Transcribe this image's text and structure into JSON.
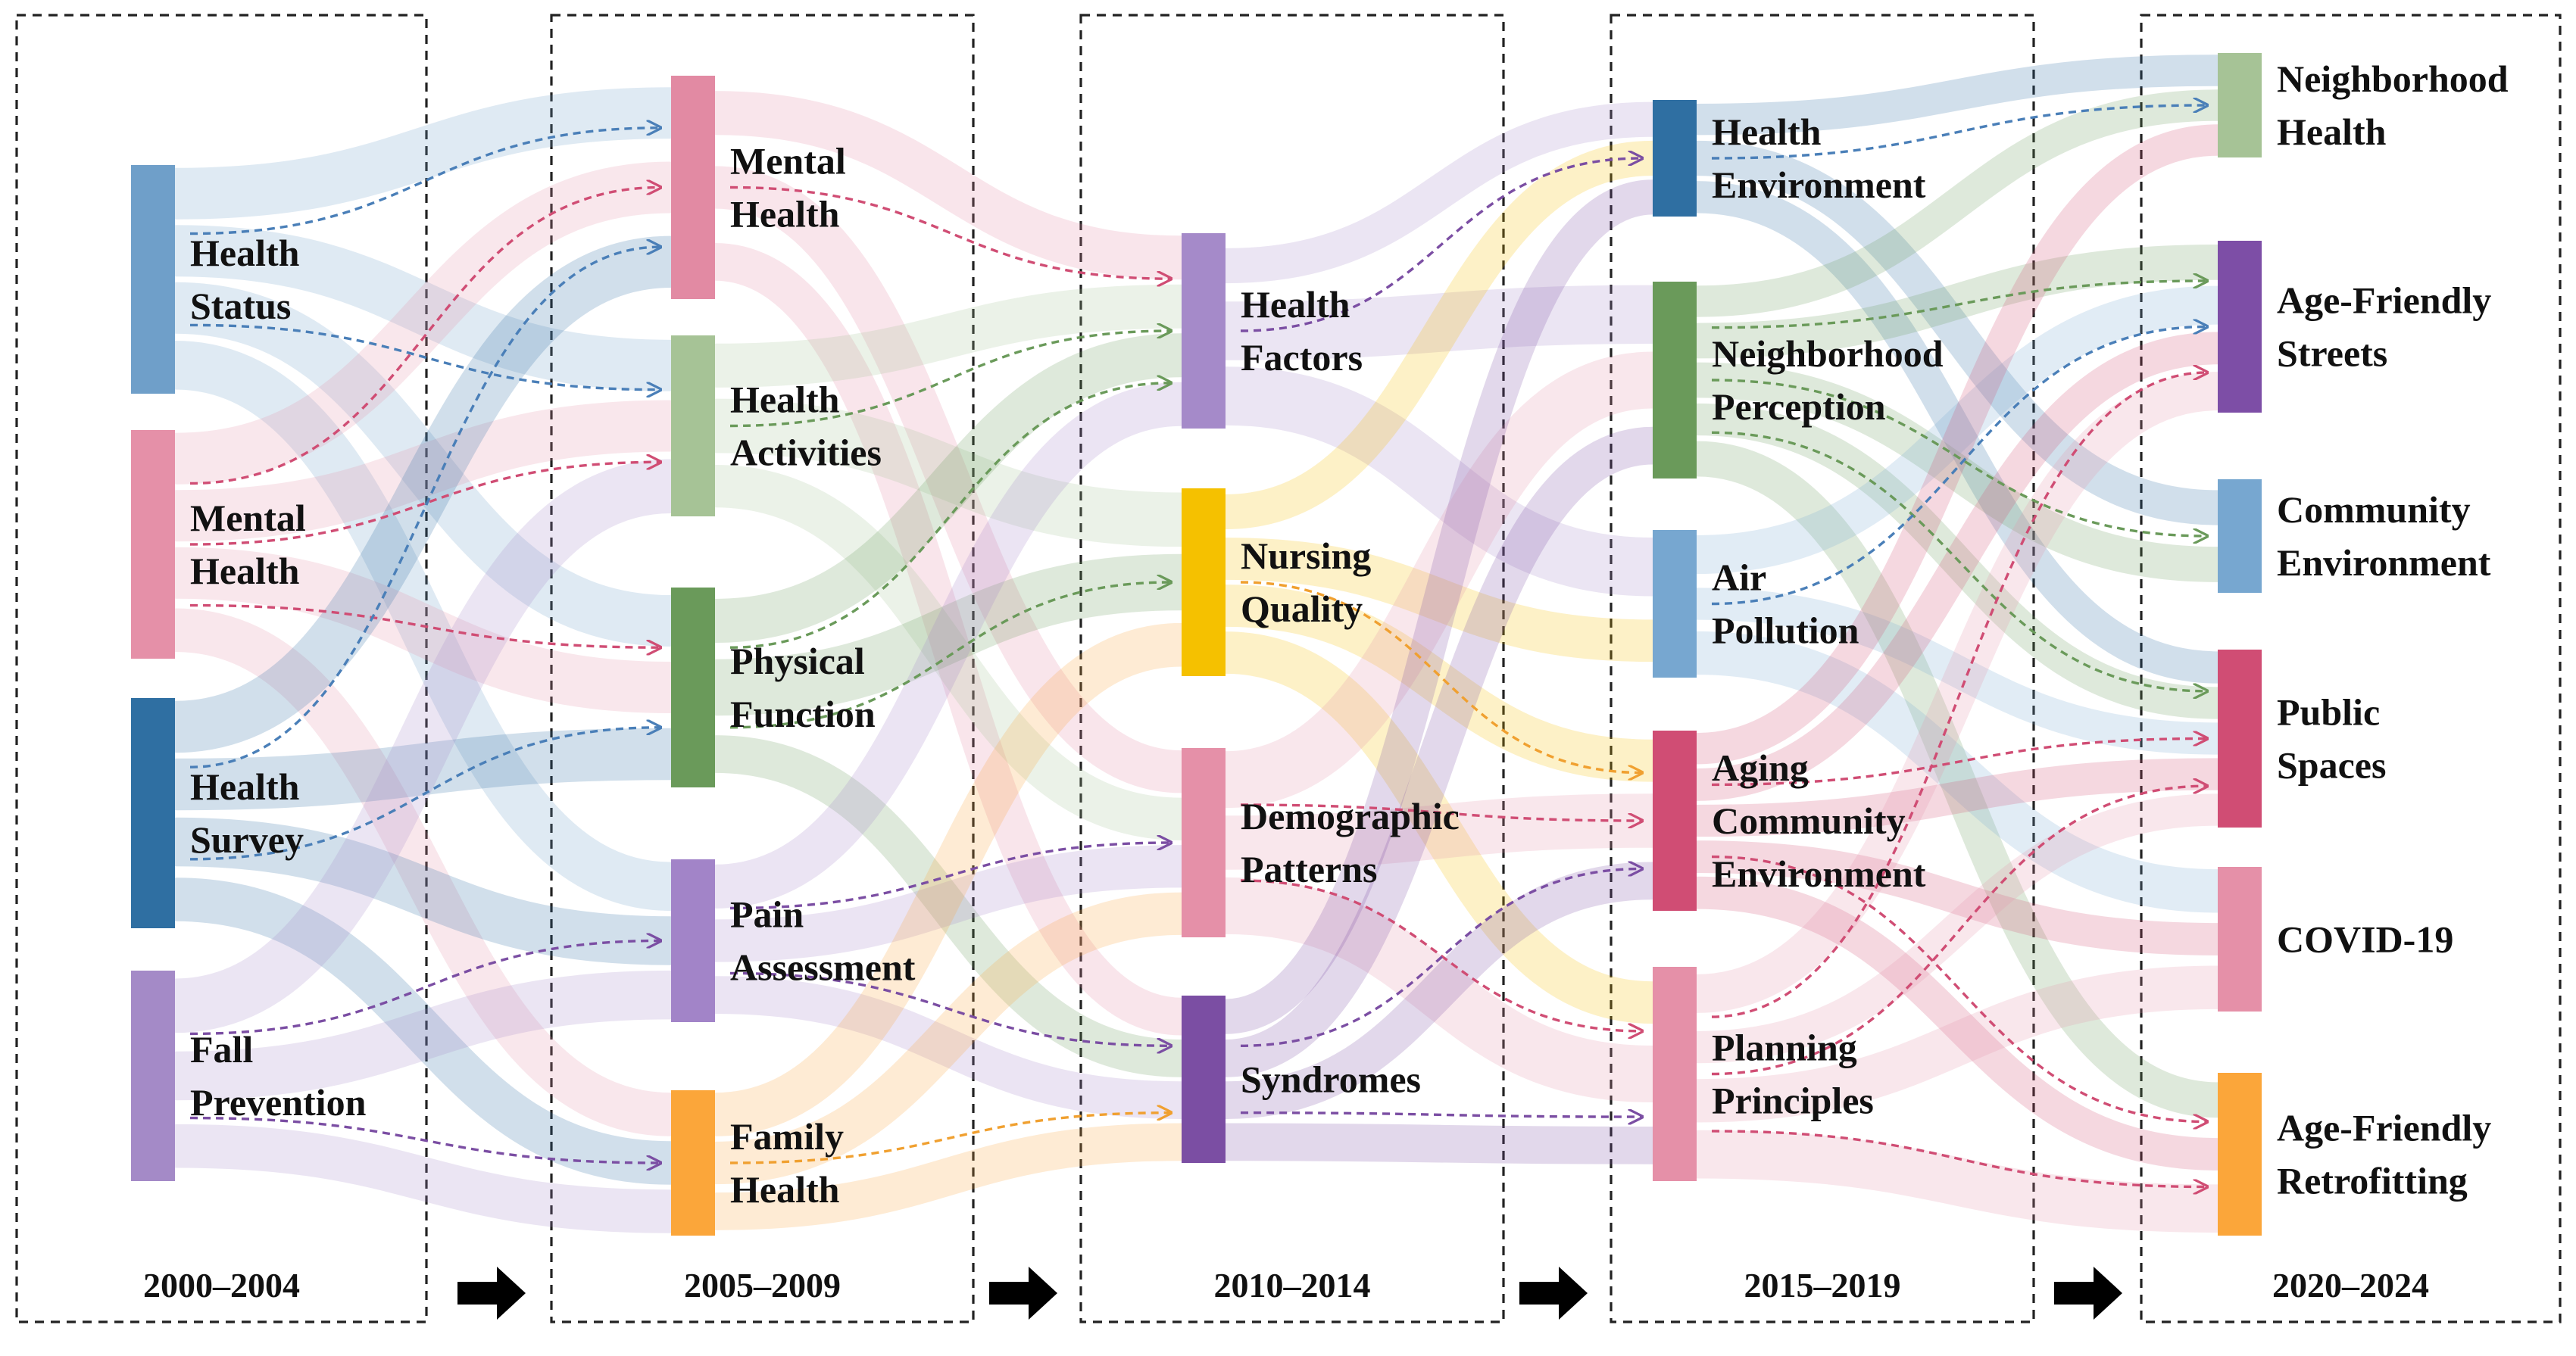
{
  "periods": [
    {
      "label": "2000–2004",
      "nodes": [
        {
          "id": "p1_health_status",
          "lines": [
            "Health",
            "Status"
          ],
          "color": "#6f9fc9"
        },
        {
          "id": "p1_mental_health",
          "lines": [
            "Mental",
            "Health"
          ],
          "color": "#e590a8"
        },
        {
          "id": "p1_health_survey",
          "lines": [
            "Health",
            "Survey"
          ],
          "color": "#2f6fa2"
        },
        {
          "id": "p1_fall_prevention",
          "lines": [
            "Fall",
            "Prevention"
          ],
          "color": "#a48ac7"
        }
      ]
    },
    {
      "label": "2005–2009",
      "nodes": [
        {
          "id": "p2_mental_health",
          "lines": [
            "Mental",
            "Health"
          ],
          "color": "#e28aa3"
        },
        {
          "id": "p2_health_activities",
          "lines": [
            "Health",
            "Activities"
          ],
          "color": "#a6c396"
        },
        {
          "id": "p2_physical_function",
          "lines": [
            "Physical",
            "Function"
          ],
          "color": "#6a9a5a"
        },
        {
          "id": "p2_pain_assessment",
          "lines": [
            "Pain",
            "Assessment"
          ],
          "color": "#a284c8"
        },
        {
          "id": "p2_family_health",
          "lines": [
            "Family",
            "Health"
          ],
          "color": "#fba63a"
        }
      ]
    },
    {
      "label": "2010–2014",
      "nodes": [
        {
          "id": "p3_health_factors",
          "lines": [
            "Health",
            "Factors"
          ],
          "color": "#a58ac9"
        },
        {
          "id": "p3_nursing_quality",
          "lines": [
            "Nursing",
            "Quality"
          ],
          "color": "#f5c100"
        },
        {
          "id": "p3_demographic_patterns",
          "lines": [
            "Demographic",
            "Patterns"
          ],
          "color": "#e590a8"
        },
        {
          "id": "p3_syndromes",
          "lines": [
            "Syndromes"
          ],
          "color": "#7b4ea3"
        }
      ]
    },
    {
      "label": "2015–2019",
      "nodes": [
        {
          "id": "p4_health_environment",
          "lines": [
            "Health",
            "Environment"
          ],
          "color": "#2f6fa2"
        },
        {
          "id": "p4_neighborhood_perception",
          "lines": [
            "Neighborhood",
            "Perception"
          ],
          "color": "#6a9a5a"
        },
        {
          "id": "p4_air_pollution",
          "lines": [
            "Air",
            "Pollution"
          ],
          "color": "#77a7d0"
        },
        {
          "id": "p4_aging_community_environment",
          "lines": [
            "Aging",
            "Community",
            "Environment"
          ],
          "color": "#d04d74"
        },
        {
          "id": "p4_planning_principles",
          "lines": [
            "Planning",
            "Principles"
          ],
          "color": "#e590a8"
        }
      ]
    },
    {
      "label": "2020–2024",
      "nodes": [
        {
          "id": "p5_neighborhood_health",
          "lines": [
            "Neighborhood",
            "Health"
          ],
          "color": "#a6c396"
        },
        {
          "id": "p5_age_friendly_streets",
          "lines": [
            "Age-Friendly",
            "Streets"
          ],
          "color": "#7d4ea6"
        },
        {
          "id": "p5_community_environment",
          "lines": [
            "Community",
            "Environment"
          ],
          "color": "#77a7d0"
        },
        {
          "id": "p5_public_spaces",
          "lines": [
            "Public",
            "Spaces"
          ],
          "color": "#d04d74"
        },
        {
          "id": "p5_covid_19",
          "lines": [
            "COVID-19"
          ],
          "color": "#e590a8"
        },
        {
          "id": "p5_age_friendly_retrofitting",
          "lines": [
            "Age-Friendly",
            "Retrofitting"
          ],
          "color": "#fba63a"
        }
      ]
    }
  ],
  "ribbons": [
    [
      "p1_health_status",
      "p2_mental_health"
    ],
    [
      "p1_health_status",
      "p2_health_activities"
    ],
    [
      "p1_health_status",
      "p2_physical_function"
    ],
    [
      "p1_health_status",
      "p2_pain_assessment"
    ],
    [
      "p1_mental_health",
      "p2_mental_health"
    ],
    [
      "p1_mental_health",
      "p2_health_activities"
    ],
    [
      "p1_mental_health",
      "p2_physical_function"
    ],
    [
      "p1_mental_health",
      "p2_family_health"
    ],
    [
      "p1_health_survey",
      "p2_mental_health"
    ],
    [
      "p1_health_survey",
      "p2_physical_function"
    ],
    [
      "p1_health_survey",
      "p2_pain_assessment"
    ],
    [
      "p1_health_survey",
      "p2_family_health"
    ],
    [
      "p1_fall_prevention",
      "p2_health_activities"
    ],
    [
      "p1_fall_prevention",
      "p2_pain_assessment"
    ],
    [
      "p1_fall_prevention",
      "p2_family_health"
    ],
    [
      "p2_mental_health",
      "p3_health_factors"
    ],
    [
      "p2_mental_health",
      "p3_demographic_patterns"
    ],
    [
      "p2_mental_health",
      "p3_syndromes"
    ],
    [
      "p2_health_activities",
      "p3_health_factors"
    ],
    [
      "p2_health_activities",
      "p3_nursing_quality"
    ],
    [
      "p2_health_activities",
      "p3_demographic_patterns"
    ],
    [
      "p2_physical_function",
      "p3_health_factors"
    ],
    [
      "p2_physical_function",
      "p3_nursing_quality"
    ],
    [
      "p2_physical_function",
      "p3_syndromes"
    ],
    [
      "p2_pain_assessment",
      "p3_health_factors"
    ],
    [
      "p2_pain_assessment",
      "p3_demographic_patterns"
    ],
    [
      "p2_pain_assessment",
      "p3_syndromes"
    ],
    [
      "p2_family_health",
      "p3_nursing_quality"
    ],
    [
      "p2_family_health",
      "p3_demographic_patterns"
    ],
    [
      "p2_family_health",
      "p3_syndromes"
    ],
    [
      "p3_health_factors",
      "p4_health_environment"
    ],
    [
      "p3_health_factors",
      "p4_neighborhood_perception"
    ],
    [
      "p3_health_factors",
      "p4_air_pollution"
    ],
    [
      "p3_nursing_quality",
      "p4_health_environment"
    ],
    [
      "p3_nursing_quality",
      "p4_air_pollution"
    ],
    [
      "p3_nursing_quality",
      "p4_aging_community_environment"
    ],
    [
      "p3_nursing_quality",
      "p4_planning_principles"
    ],
    [
      "p3_demographic_patterns",
      "p4_neighborhood_perception"
    ],
    [
      "p3_demographic_patterns",
      "p4_aging_community_environment"
    ],
    [
      "p3_demographic_patterns",
      "p4_planning_principles"
    ],
    [
      "p3_syndromes",
      "p4_health_environment"
    ],
    [
      "p3_syndromes",
      "p4_neighborhood_perception"
    ],
    [
      "p3_syndromes",
      "p4_aging_community_environment"
    ],
    [
      "p3_syndromes",
      "p4_planning_principles"
    ],
    [
      "p4_health_environment",
      "p5_neighborhood_health"
    ],
    [
      "p4_health_environment",
      "p5_community_environment"
    ],
    [
      "p4_health_environment",
      "p5_public_spaces"
    ],
    [
      "p4_neighborhood_perception",
      "p5_neighborhood_health"
    ],
    [
      "p4_neighborhood_perception",
      "p5_age_friendly_streets"
    ],
    [
      "p4_neighborhood_perception",
      "p5_community_environment"
    ],
    [
      "p4_neighborhood_perception",
      "p5_public_spaces"
    ],
    [
      "p4_neighborhood_perception",
      "p5_age_friendly_retrofitting"
    ],
    [
      "p4_air_pollution",
      "p5_age_friendly_streets"
    ],
    [
      "p4_air_pollution",
      "p5_public_spaces"
    ],
    [
      "p4_air_pollution",
      "p5_covid_19"
    ],
    [
      "p4_aging_community_environment",
      "p5_neighborhood_health"
    ],
    [
      "p4_aging_community_environment",
      "p5_age_friendly_streets"
    ],
    [
      "p4_aging_community_environment",
      "p5_public_spaces"
    ],
    [
      "p4_aging_community_environment",
      "p5_covid_19"
    ],
    [
      "p4_aging_community_environment",
      "p5_age_friendly_retrofitting"
    ],
    [
      "p4_planning_principles",
      "p5_age_friendly_streets"
    ],
    [
      "p4_planning_principles",
      "p5_public_spaces"
    ],
    [
      "p4_planning_principles",
      "p5_covid_19"
    ],
    [
      "p4_planning_principles",
      "p5_age_friendly_retrofitting"
    ]
  ],
  "trend_links": [
    [
      "p1_health_status",
      "p2_mental_health",
      "#4a7fb8"
    ],
    [
      "p1_health_status",
      "p2_health_activities",
      "#4a7fb8"
    ],
    [
      "p1_mental_health",
      "p2_mental_health",
      "#d04d74"
    ],
    [
      "p1_mental_health",
      "p2_health_activities",
      "#d04d74"
    ],
    [
      "p1_mental_health",
      "p2_physical_function",
      "#d04d74"
    ],
    [
      "p1_health_survey",
      "p2_mental_health",
      "#4a7fb8"
    ],
    [
      "p1_health_survey",
      "p2_physical_function",
      "#4a7fb8"
    ],
    [
      "p1_fall_prevention",
      "p2_pain_assessment",
      "#7b4ea3"
    ],
    [
      "p1_fall_prevention",
      "p2_family_health",
      "#7b4ea3"
    ],
    [
      "p2_mental_health",
      "p3_health_factors",
      "#d04d74"
    ],
    [
      "p2_health_activities",
      "p3_health_factors",
      "#6a9a5a"
    ],
    [
      "p2_physical_function",
      "p3_health_factors",
      "#6a9a5a"
    ],
    [
      "p2_physical_function",
      "p3_nursing_quality",
      "#6a9a5a"
    ],
    [
      "p2_pain_assessment",
      "p3_demographic_patterns",
      "#7b4ea3"
    ],
    [
      "p2_pain_assessment",
      "p3_syndromes",
      "#7b4ea3"
    ],
    [
      "p2_family_health",
      "p3_syndromes",
      "#f0a030"
    ],
    [
      "p3_health_factors",
      "p4_health_environment",
      "#7b4ea3"
    ],
    [
      "p3_nursing_quality",
      "p4_aging_community_environment",
      "#f0a030"
    ],
    [
      "p3_demographic_patterns",
      "p4_aging_community_environment",
      "#d04d74"
    ],
    [
      "p3_demographic_patterns",
      "p4_planning_principles",
      "#d04d74"
    ],
    [
      "p3_syndromes",
      "p4_aging_community_environment",
      "#7b4ea3"
    ],
    [
      "p3_syndromes",
      "p4_planning_principles",
      "#7b4ea3"
    ],
    [
      "p4_health_environment",
      "p5_neighborhood_health",
      "#4a7fb8"
    ],
    [
      "p4_neighborhood_perception",
      "p5_age_friendly_streets",
      "#6a9a5a"
    ],
    [
      "p4_neighborhood_perception",
      "p5_community_environment",
      "#6a9a5a"
    ],
    [
      "p4_neighborhood_perception",
      "p5_public_spaces",
      "#6a9a5a"
    ],
    [
      "p4_air_pollution",
      "p5_age_friendly_streets",
      "#4a7fb8"
    ],
    [
      "p4_aging_community_environment",
      "p5_public_spaces",
      "#d04d74"
    ],
    [
      "p4_aging_community_environment",
      "p5_age_friendly_retrofitting",
      "#d04d74"
    ],
    [
      "p4_planning_principles",
      "p5_age_friendly_streets",
      "#d04d74"
    ],
    [
      "p4_planning_principles",
      "p5_public_spaces",
      "#d04d74"
    ],
    [
      "p4_planning_principles",
      "p5_age_friendly_retrofitting",
      "#d04d74"
    ]
  ]
}
